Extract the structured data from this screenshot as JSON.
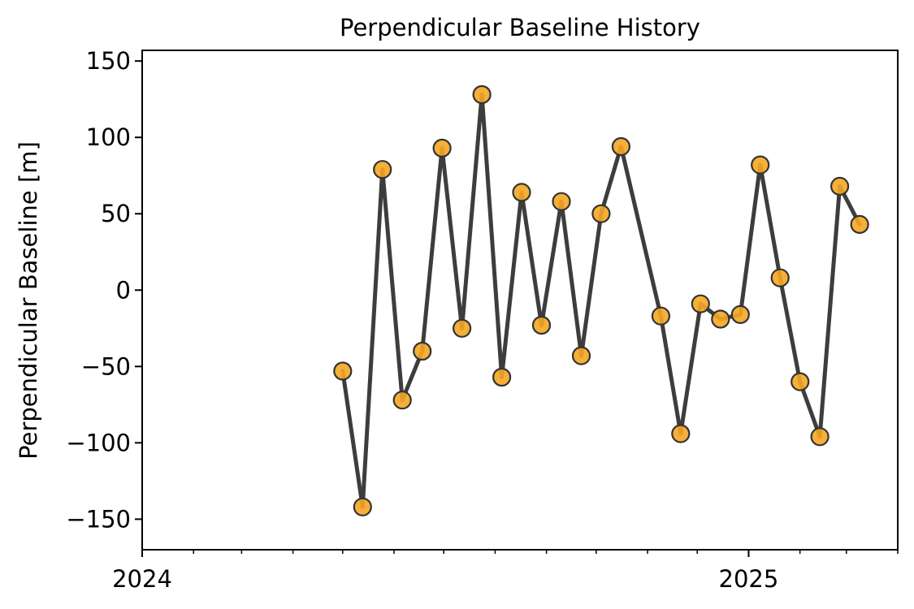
{
  "chart_data": {
    "type": "line",
    "title": "Perpendicular Baseline History",
    "xlabel": "",
    "ylabel": "Perpendicular Baseline [m]",
    "x_range": [
      "2024-01-01",
      "2025-04-01"
    ],
    "ylim": [
      -170,
      157
    ],
    "y_ticks": [
      150,
      100,
      50,
      0,
      -50,
      -100,
      -150
    ],
    "y_tick_labels": [
      "150",
      "100",
      "50",
      "0",
      "−50",
      "−100",
      "−150"
    ],
    "x_major_ticks": [
      {
        "date": "2024-01-01",
        "label": "2024"
      },
      {
        "date": "2025-01-01",
        "label": "2025"
      }
    ],
    "x_minor_ticks": [
      "2024-02-01",
      "2024-03-01",
      "2024-04-01",
      "2024-05-01",
      "2024-06-01",
      "2024-07-01",
      "2024-08-01",
      "2024-09-01",
      "2024-10-01",
      "2024-11-01",
      "2024-12-01",
      "2025-02-01",
      "2025-03-01",
      "2025-04-01"
    ],
    "grid": false,
    "line_color": "#3d3d3d",
    "marker_color": "#f5a623",
    "series": [
      {
        "x": [
          "2024-05-01",
          "2024-05-13",
          "2024-05-25",
          "2024-06-06",
          "2024-06-18",
          "2024-06-30",
          "2024-07-12",
          "2024-07-24",
          "2024-08-05",
          "2024-08-17",
          "2024-08-29",
          "2024-09-10",
          "2024-09-22",
          "2024-10-04",
          "2024-10-16",
          "2024-11-09",
          "2024-11-21",
          "2024-12-03",
          "2024-12-15",
          "2024-12-27",
          "2025-01-08",
          "2025-01-20",
          "2025-02-01",
          "2025-02-13",
          "2025-02-25",
          "2025-03-09"
        ],
        "y": [
          -53,
          -142,
          79,
          -72,
          -40,
          93,
          -25,
          128,
          -57,
          64,
          -23,
          58,
          -43,
          50,
          94,
          -17,
          -94,
          -9,
          -19,
          -16,
          82,
          8,
          -60,
          -96,
          68,
          43
        ]
      }
    ]
  }
}
